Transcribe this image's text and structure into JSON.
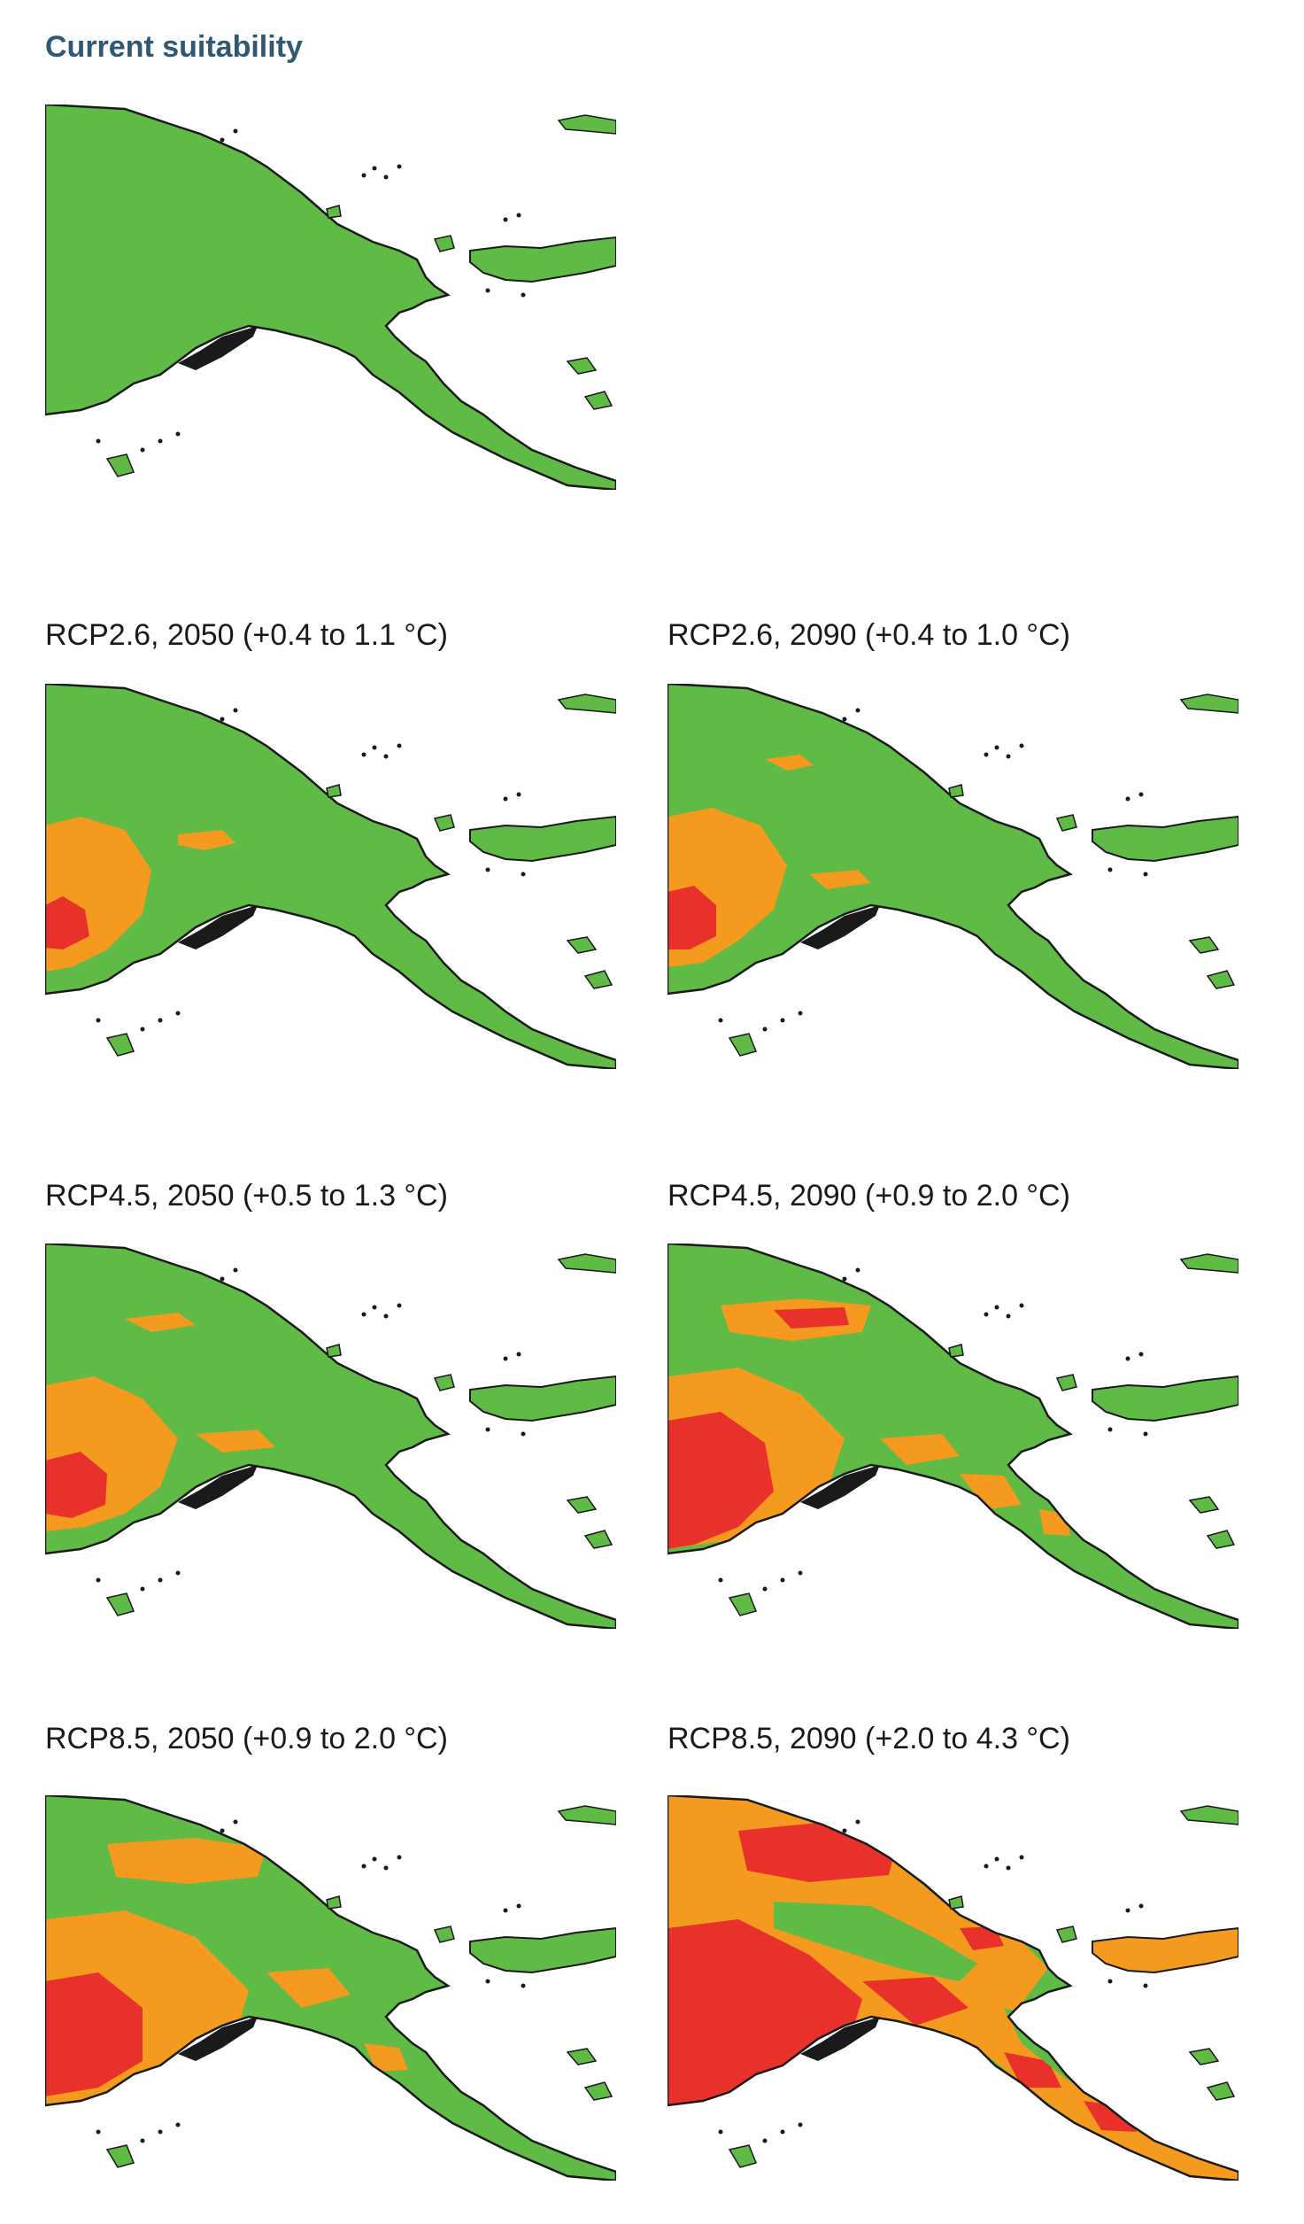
{
  "title": "Current suitability",
  "colors": {
    "suitable": "#5fba46",
    "moderate": "#f39a1f",
    "low": "#e8312a",
    "coast": "#1a1a1a",
    "sea": "#ffffff"
  },
  "panels": [
    {
      "id": "current",
      "label": "",
      "severity": 0
    },
    {
      "id": "rcp26-2050",
      "label": "RCP2.6, 2050 (+0.4 to 1.1 °C)",
      "severity": 1
    },
    {
      "id": "rcp26-2090",
      "label": "RCP2.6, 2090 (+0.4 to 1.0 °C)",
      "severity": 1
    },
    {
      "id": "rcp45-2050",
      "label": "RCP4.5, 2050 (+0.5 to 1.3 °C)",
      "severity": 2
    },
    {
      "id": "rcp45-2090",
      "label": "RCP4.5, 2090 (+0.9 to 2.0 °C)",
      "severity": 3
    },
    {
      "id": "rcp85-2050",
      "label": "RCP8.5, 2050 (+0.9 to 2.0 °C)",
      "severity": 3
    },
    {
      "id": "rcp85-2090",
      "label": "RCP8.5, 2090 (+2.0 to 4.3 °C)",
      "severity": 4
    }
  ]
}
